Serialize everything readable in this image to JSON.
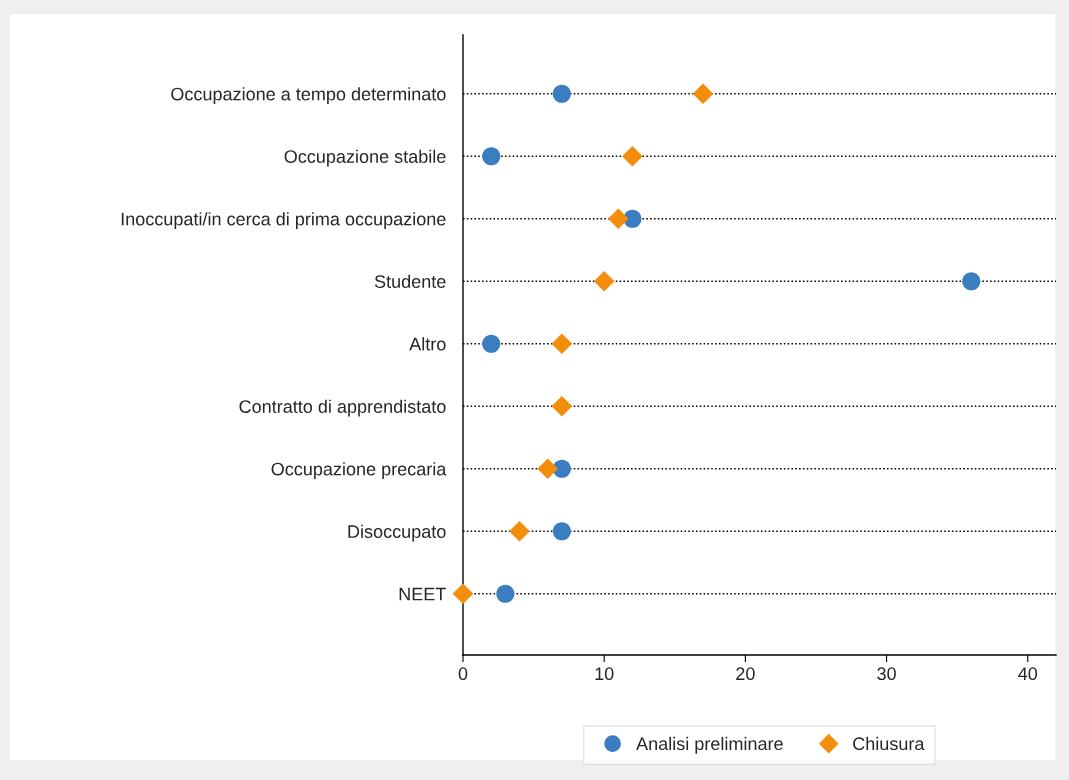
{
  "chart_data": {
    "type": "scatter",
    "categories": [
      "Occupazione a tempo determinato",
      "Occupazione stabile",
      "Inoccupati/in cerca di prima occupazione",
      "Studente",
      "Altro",
      "Contratto di apprendistato",
      "Occupazione precaria",
      "Disoccupato",
      "NEET"
    ],
    "orientation": "horizontal",
    "series": [
      {
        "name": "Analisi preliminare",
        "color": "#3a7dc0",
        "marker": "circle",
        "values": [
          7,
          2,
          12,
          36,
          2,
          null,
          7,
          7,
          3
        ]
      },
      {
        "name": "Chiusura",
        "color": "#f28e0c",
        "marker": "diamond",
        "values": [
          17,
          12,
          11,
          10,
          7,
          7,
          6,
          4,
          0
        ]
      }
    ],
    "xlim": [
      0,
      42
    ],
    "xticks": [
      0,
      10,
      20,
      30,
      40
    ],
    "grid": "y",
    "legend": "bottom"
  }
}
